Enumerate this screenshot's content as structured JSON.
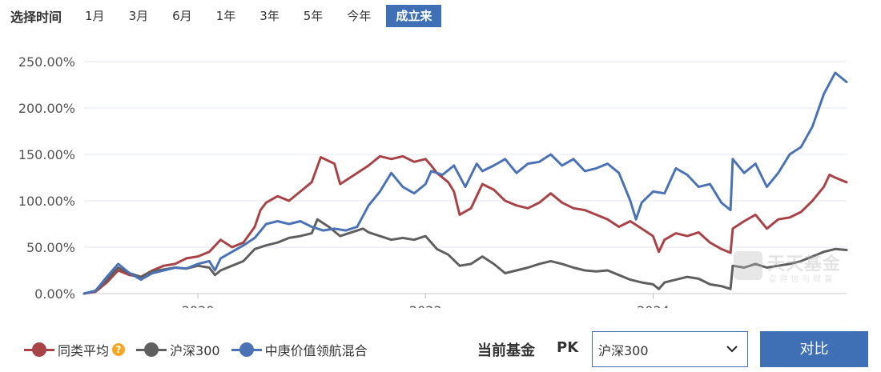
{
  "period_bar": {
    "title": "选择时间",
    "items": [
      "1月",
      "3月",
      "6月",
      "1年",
      "3年",
      "5年",
      "今年",
      "成立来"
    ],
    "active_index": 7
  },
  "legend": {
    "items": [
      {
        "label": "同类平均",
        "color": "#a84448",
        "has_help": true
      },
      {
        "label": "沪深300",
        "color": "#5f5f5f",
        "has_help": false
      },
      {
        "label": "中庚价值领航混合",
        "color": "#4a72b5",
        "has_help": false
      }
    ]
  },
  "watermark": {
    "text": "天天基金",
    "sub": "값得信与财富"
  },
  "compare": {
    "current_label": "当前基金",
    "pk_label": "PK",
    "select_value": "沪深300",
    "button_label": "对比"
  },
  "chart_data": {
    "type": "line",
    "title": "",
    "xlabel": "",
    "ylabel": "",
    "x_range": [
      2019.0,
      2025.7
    ],
    "x_ticks": [
      {
        "value": 2020,
        "label": "2020"
      },
      {
        "value": 2022,
        "label": "2022"
      },
      {
        "value": 2024,
        "label": "2024"
      }
    ],
    "ylim": [
      0,
      250
    ],
    "y_ticks": [
      {
        "value": 0,
        "label": "0.00%"
      },
      {
        "value": 50,
        "label": "50.00%"
      },
      {
        "value": 100,
        "label": "100.00%"
      },
      {
        "value": 150,
        "label": "150.00%"
      },
      {
        "value": 200,
        "label": "200.00%"
      },
      {
        "value": 250,
        "label": "250.00%"
      }
    ],
    "grid": true,
    "legend_position": "bottom-left",
    "series": [
      {
        "name": "同类平均",
        "color": "#a84448",
        "points": [
          [
            2019.0,
            0
          ],
          [
            2019.1,
            2
          ],
          [
            2019.2,
            12
          ],
          [
            2019.3,
            25
          ],
          [
            2019.4,
            20
          ],
          [
            2019.5,
            18
          ],
          [
            2019.6,
            25
          ],
          [
            2019.7,
            30
          ],
          [
            2019.8,
            32
          ],
          [
            2019.9,
            38
          ],
          [
            2020.0,
            40
          ],
          [
            2020.1,
            45
          ],
          [
            2020.2,
            58
          ],
          [
            2020.3,
            50
          ],
          [
            2020.4,
            55
          ],
          [
            2020.5,
            72
          ],
          [
            2020.55,
            90
          ],
          [
            2020.6,
            98
          ],
          [
            2020.7,
            105
          ],
          [
            2020.8,
            100
          ],
          [
            2020.9,
            110
          ],
          [
            2021.0,
            120
          ],
          [
            2021.08,
            147
          ],
          [
            2021.2,
            140
          ],
          [
            2021.25,
            118
          ],
          [
            2021.3,
            122
          ],
          [
            2021.4,
            130
          ],
          [
            2021.5,
            138
          ],
          [
            2021.6,
            148
          ],
          [
            2021.7,
            145
          ],
          [
            2021.8,
            148
          ],
          [
            2021.9,
            142
          ],
          [
            2022.0,
            145
          ],
          [
            2022.05,
            138
          ],
          [
            2022.1,
            130
          ],
          [
            2022.2,
            120
          ],
          [
            2022.25,
            110
          ],
          [
            2022.3,
            85
          ],
          [
            2022.4,
            92
          ],
          [
            2022.45,
            105
          ],
          [
            2022.5,
            118
          ],
          [
            2022.6,
            112
          ],
          [
            2022.7,
            100
          ],
          [
            2022.8,
            95
          ],
          [
            2022.9,
            92
          ],
          [
            2023.0,
            98
          ],
          [
            2023.1,
            108
          ],
          [
            2023.2,
            98
          ],
          [
            2023.3,
            92
          ],
          [
            2023.4,
            90
          ],
          [
            2023.5,
            85
          ],
          [
            2023.6,
            80
          ],
          [
            2023.7,
            72
          ],
          [
            2023.8,
            78
          ],
          [
            2023.9,
            70
          ],
          [
            2024.0,
            62
          ],
          [
            2024.05,
            45
          ],
          [
            2024.1,
            58
          ],
          [
            2024.2,
            65
          ],
          [
            2024.3,
            62
          ],
          [
            2024.4,
            66
          ],
          [
            2024.5,
            55
          ],
          [
            2024.6,
            48
          ],
          [
            2024.68,
            44
          ],
          [
            2024.7,
            70
          ],
          [
            2024.8,
            78
          ],
          [
            2024.9,
            85
          ],
          [
            2025.0,
            70
          ],
          [
            2025.1,
            80
          ],
          [
            2025.2,
            82
          ],
          [
            2025.3,
            88
          ],
          [
            2025.4,
            100
          ],
          [
            2025.5,
            115
          ],
          [
            2025.55,
            128
          ],
          [
            2025.6,
            125
          ],
          [
            2025.7,
            120
          ]
        ]
      },
      {
        "name": "沪深300",
        "color": "#5f5f5f",
        "points": [
          [
            2019.0,
            0
          ],
          [
            2019.1,
            3
          ],
          [
            2019.2,
            15
          ],
          [
            2019.3,
            28
          ],
          [
            2019.4,
            22
          ],
          [
            2019.5,
            18
          ],
          [
            2019.6,
            24
          ],
          [
            2019.7,
            26
          ],
          [
            2019.8,
            28
          ],
          [
            2019.9,
            27
          ],
          [
            2020.0,
            30
          ],
          [
            2020.1,
            28
          ],
          [
            2020.15,
            20
          ],
          [
            2020.2,
            25
          ],
          [
            2020.3,
            30
          ],
          [
            2020.4,
            35
          ],
          [
            2020.5,
            48
          ],
          [
            2020.6,
            52
          ],
          [
            2020.7,
            55
          ],
          [
            2020.8,
            60
          ],
          [
            2020.9,
            62
          ],
          [
            2021.0,
            65
          ],
          [
            2021.05,
            80
          ],
          [
            2021.15,
            72
          ],
          [
            2021.25,
            62
          ],
          [
            2021.35,
            66
          ],
          [
            2021.45,
            70
          ],
          [
            2021.5,
            66
          ],
          [
            2021.6,
            62
          ],
          [
            2021.7,
            58
          ],
          [
            2021.8,
            60
          ],
          [
            2021.9,
            58
          ],
          [
            2022.0,
            62
          ],
          [
            2022.1,
            48
          ],
          [
            2022.2,
            42
          ],
          [
            2022.3,
            30
          ],
          [
            2022.4,
            32
          ],
          [
            2022.5,
            40
          ],
          [
            2022.6,
            32
          ],
          [
            2022.7,
            22
          ],
          [
            2022.8,
            25
          ],
          [
            2022.9,
            28
          ],
          [
            2023.0,
            32
          ],
          [
            2023.1,
            35
          ],
          [
            2023.2,
            32
          ],
          [
            2023.3,
            28
          ],
          [
            2023.4,
            25
          ],
          [
            2023.5,
            24
          ],
          [
            2023.6,
            25
          ],
          [
            2023.7,
            20
          ],
          [
            2023.8,
            15
          ],
          [
            2023.9,
            12
          ],
          [
            2024.0,
            10
          ],
          [
            2024.05,
            5
          ],
          [
            2024.1,
            12
          ],
          [
            2024.2,
            15
          ],
          [
            2024.3,
            18
          ],
          [
            2024.4,
            16
          ],
          [
            2024.5,
            10
          ],
          [
            2024.6,
            8
          ],
          [
            2024.68,
            5
          ],
          [
            2024.7,
            30
          ],
          [
            2024.8,
            28
          ],
          [
            2024.9,
            32
          ],
          [
            2025.0,
            28
          ],
          [
            2025.1,
            30
          ],
          [
            2025.2,
            32
          ],
          [
            2025.3,
            35
          ],
          [
            2025.4,
            40
          ],
          [
            2025.5,
            45
          ],
          [
            2025.6,
            48
          ],
          [
            2025.7,
            47
          ]
        ]
      },
      {
        "name": "中庚价值领航混合",
        "color": "#4a72b5",
        "points": [
          [
            2019.0,
            0
          ],
          [
            2019.1,
            3
          ],
          [
            2019.2,
            18
          ],
          [
            2019.3,
            32
          ],
          [
            2019.4,
            22
          ],
          [
            2019.5,
            15
          ],
          [
            2019.6,
            22
          ],
          [
            2019.7,
            25
          ],
          [
            2019.8,
            28
          ],
          [
            2019.9,
            27
          ],
          [
            2020.0,
            32
          ],
          [
            2020.1,
            35
          ],
          [
            2020.15,
            25
          ],
          [
            2020.2,
            38
          ],
          [
            2020.3,
            45
          ],
          [
            2020.4,
            52
          ],
          [
            2020.5,
            60
          ],
          [
            2020.6,
            75
          ],
          [
            2020.7,
            78
          ],
          [
            2020.8,
            75
          ],
          [
            2020.9,
            78
          ],
          [
            2021.0,
            72
          ],
          [
            2021.1,
            68
          ],
          [
            2021.2,
            70
          ],
          [
            2021.3,
            68
          ],
          [
            2021.4,
            72
          ],
          [
            2021.5,
            95
          ],
          [
            2021.6,
            110
          ],
          [
            2021.7,
            130
          ],
          [
            2021.8,
            115
          ],
          [
            2021.9,
            108
          ],
          [
            2022.0,
            118
          ],
          [
            2022.05,
            132
          ],
          [
            2022.15,
            128
          ],
          [
            2022.25,
            138
          ],
          [
            2022.35,
            115
          ],
          [
            2022.45,
            140
          ],
          [
            2022.5,
            132
          ],
          [
            2022.6,
            138
          ],
          [
            2022.7,
            145
          ],
          [
            2022.8,
            130
          ],
          [
            2022.9,
            140
          ],
          [
            2023.0,
            142
          ],
          [
            2023.1,
            150
          ],
          [
            2023.2,
            138
          ],
          [
            2023.3,
            145
          ],
          [
            2023.4,
            132
          ],
          [
            2023.5,
            135
          ],
          [
            2023.6,
            140
          ],
          [
            2023.7,
            130
          ],
          [
            2023.8,
            100
          ],
          [
            2023.85,
            80
          ],
          [
            2023.9,
            98
          ],
          [
            2024.0,
            110
          ],
          [
            2024.1,
            108
          ],
          [
            2024.2,
            135
          ],
          [
            2024.3,
            128
          ],
          [
            2024.4,
            115
          ],
          [
            2024.5,
            118
          ],
          [
            2024.6,
            98
          ],
          [
            2024.68,
            90
          ],
          [
            2024.7,
            145
          ],
          [
            2024.8,
            130
          ],
          [
            2024.9,
            140
          ],
          [
            2025.0,
            115
          ],
          [
            2025.1,
            130
          ],
          [
            2025.2,
            150
          ],
          [
            2025.3,
            158
          ],
          [
            2025.4,
            180
          ],
          [
            2025.5,
            215
          ],
          [
            2025.6,
            238
          ],
          [
            2025.7,
            228
          ]
        ]
      }
    ]
  }
}
